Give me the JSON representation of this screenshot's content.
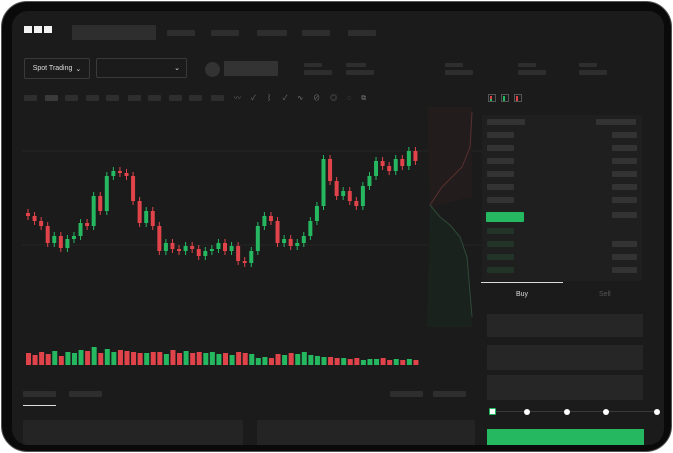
{
  "header": {
    "logo": "OKX"
  },
  "market_selector": {
    "label": "Spot Trading",
    "dropdown_icon": "chevron-down-icon"
  },
  "pair_selector": {
    "dropdown_icon": "chevron-down-icon"
  },
  "order_form": {
    "tabs": [
      {
        "label": "Buy",
        "active": true
      },
      {
        "label": "Sell",
        "active": false
      }
    ],
    "slider_percent": 0
  },
  "colors": {
    "up": "#25b860",
    "down": "#e0444a",
    "background": "#1b1b1b",
    "accent": "#25b860"
  },
  "candles_close": [
    95,
    90,
    85,
    68,
    75,
    63,
    72,
    75,
    88,
    85,
    115,
    100,
    135,
    140,
    138,
    135,
    110,
    88,
    100,
    85,
    60,
    68,
    62,
    60,
    65,
    62,
    55,
    60,
    62,
    68,
    60,
    65,
    50,
    48,
    60,
    85,
    95,
    90,
    68,
    72,
    65,
    68,
    75,
    90,
    105,
    152,
    130,
    115,
    120,
    110,
    105,
    125,
    135,
    150,
    145,
    140,
    152,
    145,
    160,
    150
  ],
  "volumes": [
    12,
    10,
    13,
    11,
    14,
    9,
    13,
    12,
    15,
    14,
    18,
    12,
    16,
    13,
    15,
    14,
    13,
    12,
    12,
    13,
    13,
    11,
    15,
    12,
    14,
    12,
    13,
    12,
    13,
    11,
    12,
    10,
    13,
    12,
    11,
    7,
    8,
    7,
    11,
    10,
    12,
    11,
    13,
    10,
    9,
    8,
    8,
    7,
    7,
    6,
    7,
    5,
    6,
    6,
    7,
    5,
    6,
    5,
    6,
    5
  ]
}
